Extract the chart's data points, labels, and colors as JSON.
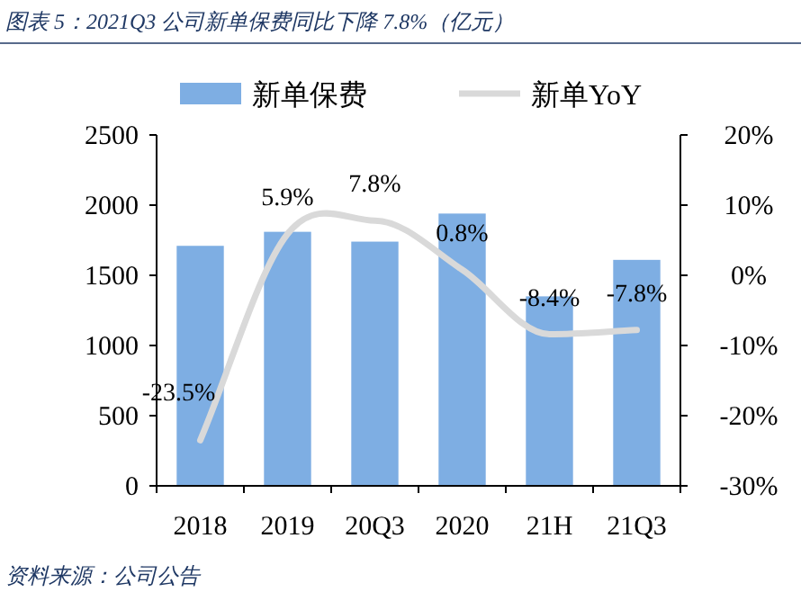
{
  "chart_data": {
    "type": "bar",
    "title": "图表 5：2021Q3 公司新单保费同比下降 7.8%（亿元）",
    "categories": [
      "2018",
      "2019",
      "20Q3",
      "2020",
      "21H",
      "21Q3"
    ],
    "series": [
      {
        "name": "新单保费",
        "color": "#7eaee3",
        "values": [
          1710,
          1810,
          1740,
          1940,
          1350,
          1610
        ]
      },
      {
        "name": "新单YoY",
        "type": "line",
        "axis": "y2",
        "color": "#d9d9d9",
        "values": [
          -23.5,
          5.9,
          7.8,
          0.8,
          -8.4,
          -7.8
        ],
        "value_labels": [
          "-23.5%",
          "5.9%",
          "7.8%",
          "0.8%",
          "-8.4%",
          "-7.8%"
        ]
      }
    ],
    "ylim": [
      0,
      2500
    ],
    "yticks": [
      0,
      500,
      1000,
      1500,
      2000,
      2500
    ],
    "y2lim": [
      -30,
      20
    ],
    "y2ticks": [
      {
        "value": -30,
        "label": "-30%"
      },
      {
        "value": -20,
        "label": "-20%"
      },
      {
        "value": -10,
        "label": "-10%"
      },
      {
        "value": 0,
        "label": "0%"
      },
      {
        "value": 10,
        "label": "10%"
      },
      {
        "value": 20,
        "label": "20%"
      }
    ],
    "legend": "top",
    "grid": false,
    "marker": "none",
    "annotations": [
      "资料来源：公司公告"
    ]
  }
}
